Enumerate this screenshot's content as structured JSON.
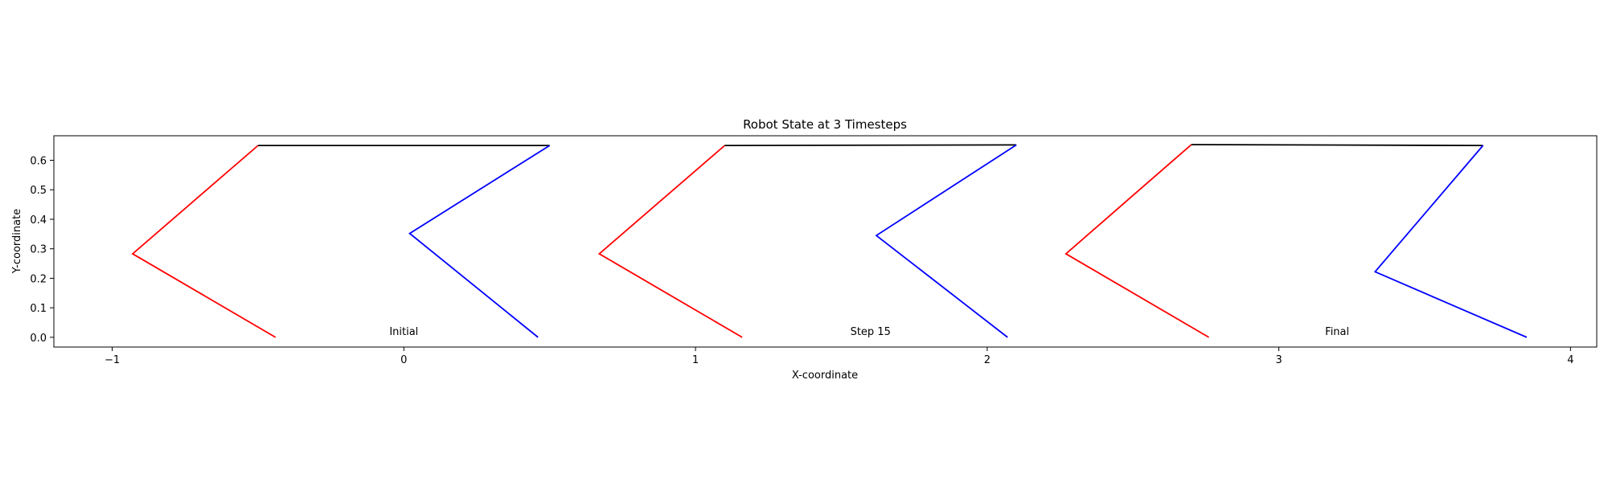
{
  "chart_data": {
    "type": "line",
    "title": "Robot State at 3 Timesteps",
    "xlabel": "X-coordinate",
    "ylabel": "Y-coordinate",
    "xlim": [
      -1.2,
      4.09
    ],
    "ylim": [
      -0.033,
      0.683
    ],
    "xticks": [
      -1,
      0,
      1,
      2,
      3,
      4
    ],
    "xtick_labels": [
      "−1",
      "0",
      "1",
      "2",
      "3",
      "4"
    ],
    "yticks": [
      0.0,
      0.1,
      0.2,
      0.3,
      0.4,
      0.5,
      0.6
    ],
    "ytick_labels": [
      "0.0",
      "0.1",
      "0.2",
      "0.3",
      "0.4",
      "0.5",
      "0.6"
    ],
    "grid": false,
    "series": [
      {
        "color": "#ff0000",
        "x": [
          -0.44,
          -0.93,
          -0.5
        ],
        "y": [
          0.0,
          0.283,
          0.65
        ]
      },
      {
        "color": "#000000",
        "x": [
          -0.5,
          0.5
        ],
        "y": [
          0.65,
          0.65
        ]
      },
      {
        "color": "#0000ff",
        "x": [
          0.46,
          0.02,
          0.5
        ],
        "y": [
          0.0,
          0.352,
          0.65
        ]
      },
      {
        "color": "#ff0000",
        "x": [
          1.16,
          0.67,
          1.1
        ],
        "y": [
          0.0,
          0.283,
          0.65
        ]
      },
      {
        "color": "#000000",
        "x": [
          1.1,
          2.1
        ],
        "y": [
          0.65,
          0.652
        ]
      },
      {
        "color": "#0000ff",
        "x": [
          2.07,
          1.62,
          2.1
        ],
        "y": [
          0.0,
          0.345,
          0.652
        ]
      },
      {
        "color": "#ff0000",
        "x": [
          2.76,
          2.27,
          2.7
        ],
        "y": [
          0.0,
          0.283,
          0.653
        ]
      },
      {
        "color": "#000000",
        "x": [
          2.7,
          3.7
        ],
        "y": [
          0.653,
          0.65
        ]
      },
      {
        "color": "#0000ff",
        "x": [
          3.85,
          3.33,
          3.7
        ],
        "y": [
          0.0,
          0.222,
          0.65
        ]
      }
    ],
    "annotations": [
      {
        "text": "Initial",
        "x": 0.0,
        "y": 0.0
      },
      {
        "text": "Step 15",
        "x": 1.6,
        "y": 0.0
      },
      {
        "text": "Final",
        "x": 3.2,
        "y": 0.0
      }
    ]
  }
}
